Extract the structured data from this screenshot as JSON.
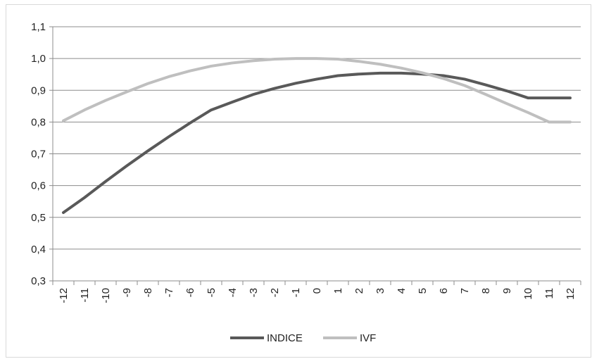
{
  "chart_data": {
    "type": "line",
    "x": [
      "-12",
      "-11",
      "-10",
      "-9",
      "-8",
      "-7",
      "-6",
      "-5",
      "-4",
      "-3",
      "-2",
      "-1",
      "0",
      "1",
      "2",
      "3",
      "4",
      "5",
      "6",
      "7",
      "8",
      "9",
      "10",
      "11",
      "12"
    ],
    "ylim": [
      0.3,
      1.1
    ],
    "yticks": [
      "0,3",
      "0,4",
      "0,5",
      "0,6",
      "0,7",
      "0,8",
      "0,9",
      "1,0",
      "1,1"
    ],
    "yticks_values": [
      0.3,
      0.4,
      0.5,
      0.6,
      0.7,
      0.8,
      0.9,
      1.0,
      1.1
    ],
    "grid": true,
    "legend_position": "bottom",
    "series": [
      {
        "name": "INDICE",
        "color": "#595959",
        "values": [
          0.515,
          0.562,
          0.613,
          0.662,
          0.709,
          0.754,
          0.797,
          0.838,
          0.863,
          0.887,
          0.906,
          0.922,
          0.935,
          0.946,
          0.951,
          0.954,
          0.954,
          0.951,
          0.946,
          0.935,
          0.917,
          0.898,
          0.876,
          0.876,
          0.876
        ]
      },
      {
        "name": "IVF",
        "color": "#bfbfbf",
        "values": [
          0.804,
          0.838,
          0.868,
          0.895,
          0.921,
          0.943,
          0.961,
          0.976,
          0.986,
          0.993,
          0.998,
          1.0,
          1.0,
          0.998,
          0.991,
          0.982,
          0.97,
          0.955,
          0.937,
          0.915,
          0.887,
          0.858,
          0.83,
          0.8,
          0.8
        ]
      }
    ]
  }
}
